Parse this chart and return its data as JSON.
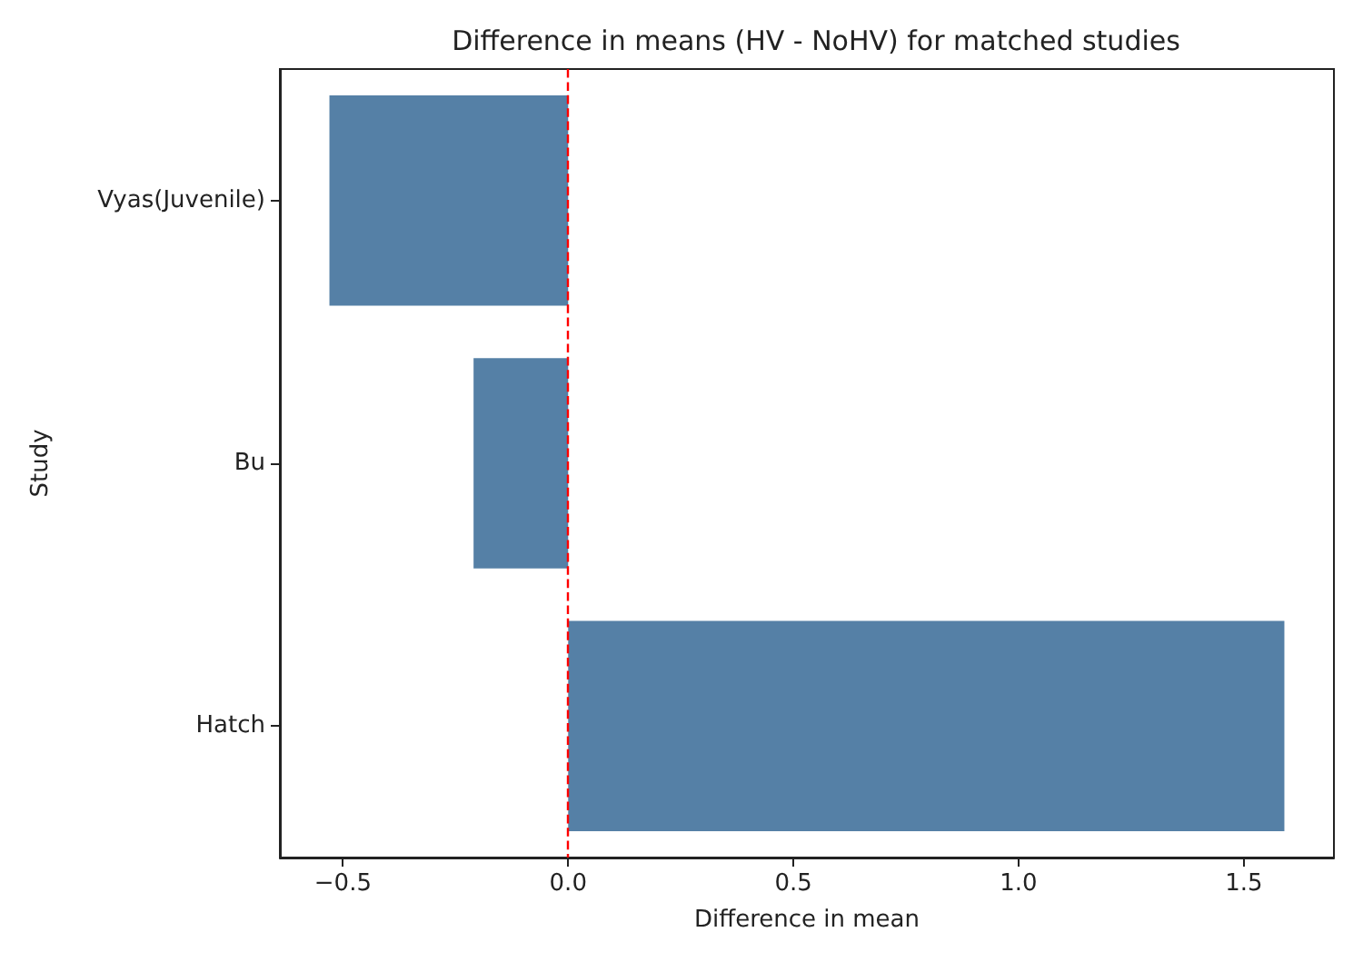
{
  "chart_data": {
    "type": "bar",
    "orientation": "horizontal",
    "title": "Difference in means (HV - NoHV) for matched studies",
    "xlabel": "Difference in mean",
    "ylabel": "Study",
    "categories": [
      "Vyas(Juvenile)",
      "Bu",
      "Hatch"
    ],
    "values": [
      -0.53,
      -0.21,
      1.59
    ],
    "color": "#5580a6",
    "xlim": [
      -0.64,
      1.7
    ],
    "xticks": [
      {
        "value": -0.5,
        "label": "−0.5"
      },
      {
        "value": 0,
        "label": "0.0"
      },
      {
        "value": 0.5,
        "label": "0.5"
      },
      {
        "value": 1,
        "label": "1.0"
      },
      {
        "value": 1.5,
        "label": "1.5"
      }
    ],
    "ref_lines": [
      {
        "axis": "x",
        "value": 0,
        "color": "#ff0000",
        "line_style": "dashed"
      }
    ],
    "grid": false
  }
}
